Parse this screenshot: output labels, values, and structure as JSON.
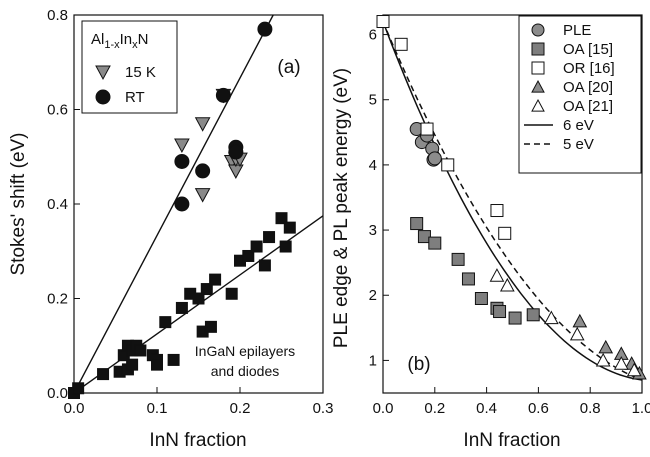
{
  "chart_data": [
    {
      "type": "scatter",
      "panel_label": "(a)",
      "xlabel": "InN fraction",
      "ylabel": "Stokes' shift (eV)",
      "xlim": [
        0,
        0.3
      ],
      "ylim": [
        0,
        0.8
      ],
      "xticks": [
        "0.0",
        "0.1",
        "0.2",
        "0.3"
      ],
      "yticks": [
        "0.0",
        "0.2",
        "0.4",
        "0.6",
        "0.8"
      ],
      "legend_title": "Al1-xInxN",
      "legend": [
        "15 K",
        "RT"
      ],
      "legend_position": "top-left",
      "annotation": [
        "InGaN epilayers",
        "and diodes"
      ],
      "series": [
        {
          "name": "15 K",
          "marker": "triangle-down",
          "color": "#8a8a8a",
          "x": [
            0.13,
            0.155,
            0.155,
            0.18,
            0.19,
            0.195,
            0.195,
            0.2
          ],
          "y": [
            0.525,
            0.57,
            0.42,
            0.63,
            0.49,
            0.47,
            0.495,
            0.495
          ]
        },
        {
          "name": "RT",
          "marker": "circle",
          "color": "#111111",
          "x": [
            0.13,
            0.13,
            0.155,
            0.18,
            0.195,
            0.195,
            0.23
          ],
          "y": [
            0.49,
            0.4,
            0.47,
            0.63,
            0.52,
            0.51,
            0.77
          ]
        },
        {
          "name": "InGaN epilayers and diodes",
          "marker": "square",
          "color": "#111111",
          "x": [
            0.0,
            0.005,
            0.035,
            0.055,
            0.06,
            0.065,
            0.065,
            0.07,
            0.07,
            0.075,
            0.08,
            0.095,
            0.1,
            0.1,
            0.11,
            0.12,
            0.13,
            0.14,
            0.15,
            0.155,
            0.16,
            0.165,
            0.17,
            0.19,
            0.2,
            0.21,
            0.22,
            0.23,
            0.235,
            0.25,
            0.255,
            0.26
          ],
          "y": [
            0.0,
            0.01,
            0.04,
            0.045,
            0.08,
            0.05,
            0.1,
            0.06,
            0.09,
            0.1,
            0.09,
            0.08,
            0.07,
            0.06,
            0.15,
            0.07,
            0.18,
            0.21,
            0.2,
            0.13,
            0.22,
            0.14,
            0.24,
            0.21,
            0.28,
            0.29,
            0.31,
            0.27,
            0.33,
            0.37,
            0.31,
            0.35
          ]
        }
      ],
      "lines": [
        {
          "name": "fit RT",
          "x": [
            0.0,
            0.24
          ],
          "y": [
            0.0,
            0.8
          ]
        },
        {
          "name": "fit InGaN",
          "x": [
            0.0,
            0.3
          ],
          "y": [
            0.0,
            0.375
          ]
        }
      ]
    },
    {
      "type": "scatter",
      "panel_label": "(b)",
      "xlabel": "InN fraction",
      "ylabel": "PLE edge & PL peak energy (eV)",
      "xlim": [
        0,
        1.0
      ],
      "ylim": [
        0.5,
        6.3
      ],
      "xticks": [
        "0.0",
        "0.2",
        "0.4",
        "0.6",
        "0.8",
        "1.0"
      ],
      "yticks": [
        "1",
        "2",
        "3",
        "4",
        "5",
        "6"
      ],
      "legend_position": "top-right",
      "series": [
        {
          "name": "PLE",
          "marker": "circle",
          "fill": "#8c8c8c",
          "x": [
            0.13,
            0.15,
            0.17,
            0.19,
            0.195,
            0.2
          ],
          "y": [
            4.55,
            4.35,
            4.45,
            4.25,
            4.08,
            4.1
          ]
        },
        {
          "name": "OA [15]",
          "marker": "square",
          "fill": "#7e7e7e",
          "x": [
            0.13,
            0.16,
            0.2,
            0.29,
            0.33,
            0.38,
            0.44,
            0.45,
            0.51,
            0.58
          ],
          "y": [
            3.1,
            2.9,
            2.8,
            2.55,
            2.25,
            1.95,
            1.8,
            1.75,
            1.65,
            1.7
          ]
        },
        {
          "name": "OR [16]",
          "marker": "square-open",
          "fill": "#ffffff",
          "x": [
            0.0,
            0.07,
            0.17,
            0.25,
            0.44,
            0.47
          ],
          "y": [
            6.2,
            5.85,
            4.55,
            4.0,
            3.3,
            2.95
          ]
        },
        {
          "name": "OA [20]",
          "marker": "triangle",
          "fill": "#8c8c8c",
          "x": [
            0.76,
            0.86,
            0.92,
            0.96,
            0.99
          ],
          "y": [
            1.6,
            1.2,
            1.1,
            0.95,
            0.8
          ]
        },
        {
          "name": "OA [21]",
          "marker": "triangle-open",
          "fill": "#ffffff",
          "x": [
            0.44,
            0.48,
            0.65,
            0.75,
            0.85,
            0.92,
            0.97
          ],
          "y": [
            2.3,
            2.15,
            1.65,
            1.4,
            1.0,
            0.95,
            0.85
          ]
        }
      ],
      "curves": [
        {
          "name": "6 eV",
          "style": "solid",
          "x0": 0.0,
          "y0": 6.2,
          "x1": 1.0,
          "y1": 0.7,
          "bowing": 5.0
        },
        {
          "name": "5 eV",
          "style": "dashed",
          "x0": 0.0,
          "y0": 6.2,
          "x1": 1.0,
          "y1": 0.7,
          "bowing": 4.0
        }
      ]
    }
  ]
}
